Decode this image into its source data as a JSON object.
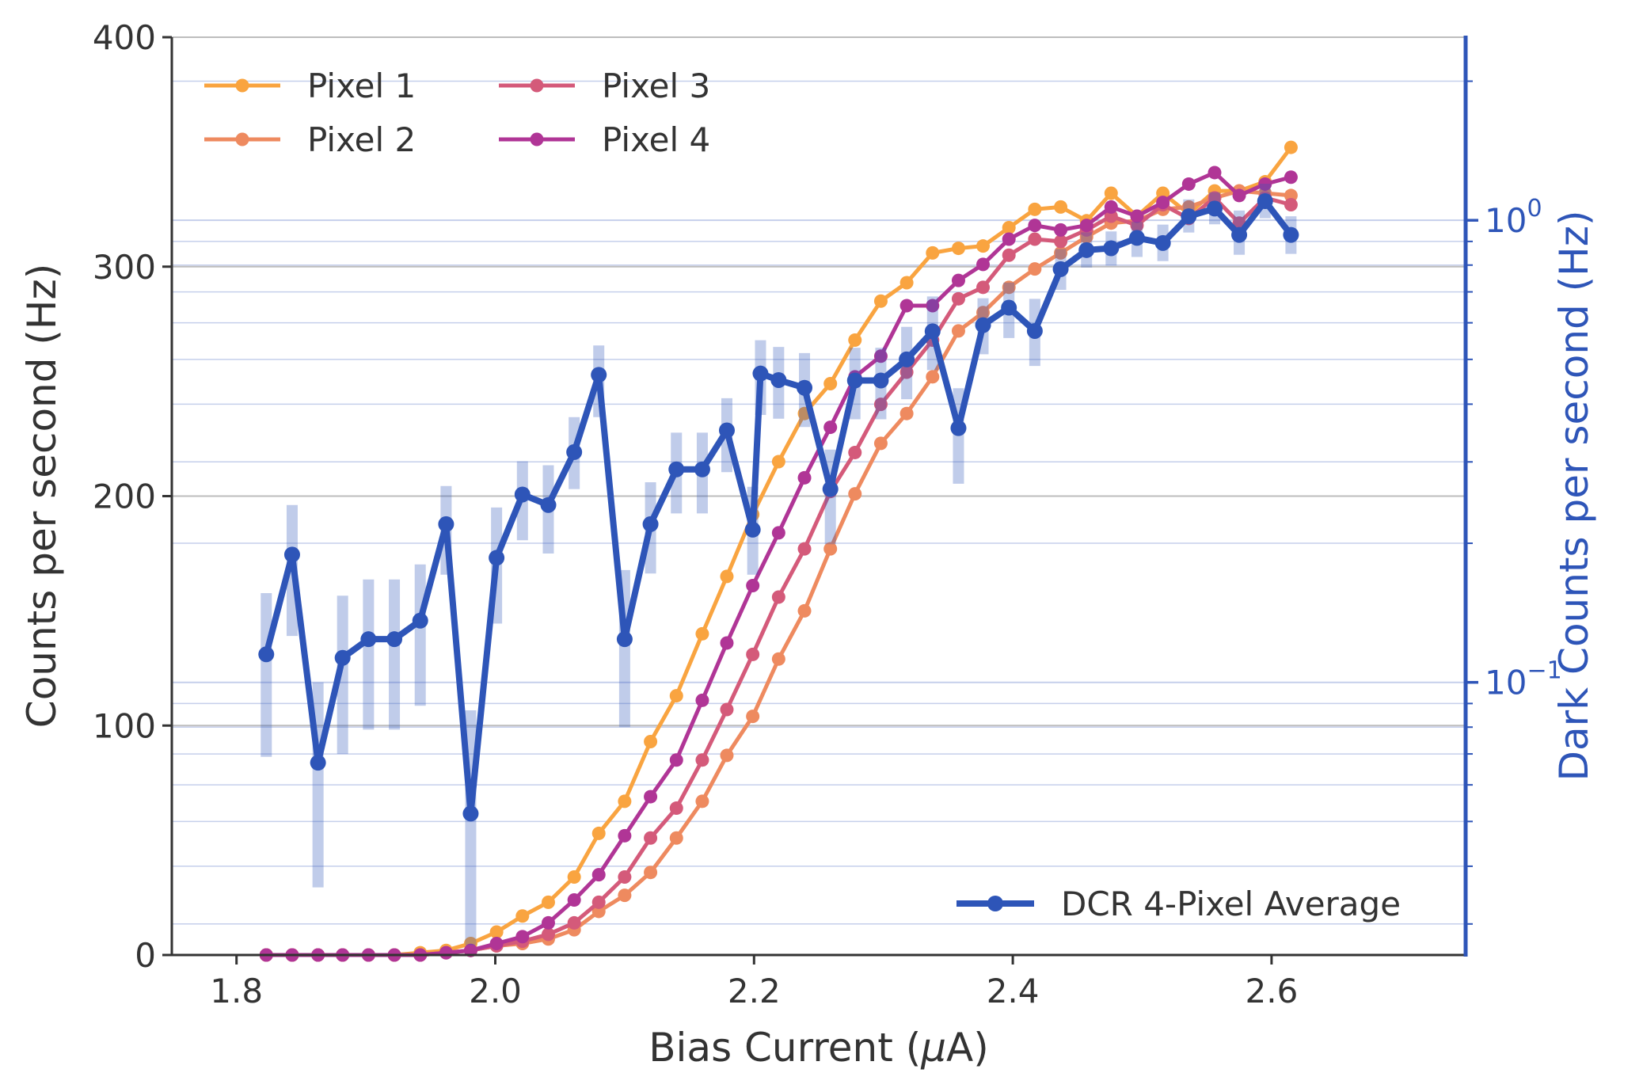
{
  "chart_data": {
    "type": "line",
    "xlabel_prefix": "Bias Current (",
    "xlabel_unit_symbol": "μ",
    "xlabel_suffix": "A)",
    "ylabel": "Counts per second (Hz)",
    "y2label": "Dark Counts per second (Hz)",
    "xlim": [
      1.75,
      2.75
    ],
    "ylim": [
      0,
      400
    ],
    "y2lim": [
      0.0257,
      2.49
    ],
    "y2scale": "log",
    "xticks": [
      1.8,
      2.0,
      2.2,
      2.4,
      2.6
    ],
    "xtick_labels": [
      "1.8",
      "2.0",
      "2.2",
      "2.4",
      "2.6"
    ],
    "yticks": [
      0,
      100,
      200,
      300,
      400
    ],
    "ytick_labels": [
      "0",
      "100",
      "200",
      "300",
      "400"
    ],
    "y2ticks": [
      {
        "value": 0.1,
        "base": "10",
        "exp": "−1"
      },
      {
        "value": 1.0,
        "base": "10",
        "exp": "0"
      }
    ],
    "grid": true,
    "legend_placement": "top-left",
    "legend2_placement": "bottom-right",
    "x": [
      1.823,
      1.843,
      1.863,
      1.882,
      1.902,
      1.922,
      1.942,
      1.962,
      1.981,
      2.001,
      2.021,
      2.041,
      2.061,
      2.08,
      2.1,
      2.12,
      2.14,
      2.16,
      2.179,
      2.199,
      2.219,
      2.239,
      2.259,
      2.278,
      2.298,
      2.318,
      2.338,
      2.358,
      2.377,
      2.397,
      2.417,
      2.437,
      2.457,
      2.476,
      2.496,
      2.516,
      2.536,
      2.556,
      2.575,
      2.595,
      2.615
    ],
    "series": [
      {
        "name": "Pixel 1",
        "color": "#f9a440",
        "values": [
          0,
          0,
          0,
          0,
          0,
          0,
          1,
          2,
          5,
          10,
          17,
          23,
          34,
          53,
          67,
          93,
          113,
          140,
          165,
          192,
          215,
          236,
          249,
          268,
          285,
          293,
          306,
          308,
          309,
          317,
          325,
          326,
          320,
          332,
          322,
          332,
          323,
          333,
          333,
          337,
          352
        ]
      },
      {
        "name": "Pixel 2",
        "color": "#ee8a5f",
        "values": [
          0,
          0,
          0,
          0,
          0,
          0,
          0,
          1,
          2,
          4,
          5,
          7,
          11,
          19,
          26,
          36,
          51,
          67,
          87,
          104,
          129,
          150,
          177,
          201,
          223,
          236,
          252,
          272,
          280,
          291,
          299,
          306,
          313,
          319,
          320,
          325,
          326,
          330,
          333,
          332,
          331
        ]
      },
      {
        "name": "Pixel 3",
        "color": "#d45a7a",
        "values": [
          0,
          0,
          0,
          0,
          0,
          0,
          0,
          1,
          2,
          4,
          6,
          9,
          14,
          23,
          34,
          51,
          64,
          85,
          107,
          131,
          156,
          177,
          202,
          219,
          240,
          254,
          268,
          286,
          291,
          305,
          312,
          311,
          316,
          322,
          318,
          327,
          321,
          330,
          319,
          330,
          327
        ]
      },
      {
        "name": "Pixel 4",
        "color": "#b03596",
        "values": [
          0,
          0,
          0,
          0,
          0,
          0,
          0,
          1,
          2,
          5,
          8,
          14,
          24,
          35,
          52,
          69,
          85,
          111,
          136,
          161,
          184,
          208,
          230,
          252,
          261,
          283,
          283,
          294,
          301,
          312,
          318,
          316,
          318,
          326,
          322,
          328,
          336,
          341,
          331,
          336,
          339
        ]
      }
    ],
    "y2_series": {
      "name": "DCR 4-Pixel Average",
      "color": "#2e55b8",
      "values": [
        0.115,
        0.189,
        0.067,
        0.113,
        0.124,
        0.124,
        0.136,
        0.22,
        0.052,
        0.186,
        0.255,
        0.242,
        0.315,
        0.463,
        0.124,
        0.22,
        0.289,
        0.289,
        0.351,
        0.214,
        0.466,
        0.451,
        0.434,
        0.262,
        0.45,
        0.45,
        0.5,
        0.575,
        0.355,
        0.593,
        0.647,
        0.576,
        0.784,
        0.862,
        0.87,
        0.916,
        0.893,
        1.02,
        1.06,
        0.93,
        1.1,
        0.93
      ],
      "x_override": [
        1.823,
        1.843,
        1.863,
        1.882,
        1.902,
        1.922,
        1.942,
        1.962,
        1.981,
        2.001,
        2.021,
        2.041,
        2.061,
        2.08,
        2.1,
        2.12,
        2.14,
        2.16,
        2.179,
        2.199,
        2.205,
        2.219,
        2.239,
        2.259,
        2.278,
        2.298,
        2.318,
        2.338,
        2.358,
        2.377,
        2.397,
        2.417,
        2.437,
        2.457,
        2.476,
        2.496,
        2.516,
        2.536,
        2.556,
        2.575,
        2.595,
        2.615
      ],
      "err_low": [
        0.069,
        0.126,
        0.036,
        0.07,
        0.079,
        0.079,
        0.089,
        0.171,
        0.027,
        0.134,
        0.203,
        0.19,
        0.262,
        0.375,
        0.08,
        0.172,
        0.232,
        0.232,
        0.285,
        0.171,
        0.379,
        0.372,
        0.357,
        0.199,
        0.371,
        0.371,
        0.41,
        0.474,
        0.269,
        0.513,
        0.556,
        0.484,
        0.707,
        0.79,
        0.798,
        0.833,
        0.816,
        0.941,
        0.98,
        0.842,
        1.01,
        0.846
      ],
      "err_high": [
        0.156,
        0.242,
        0.1,
        0.154,
        0.167,
        0.167,
        0.18,
        0.266,
        0.087,
        0.239,
        0.301,
        0.295,
        0.375,
        0.536,
        0.175,
        0.271,
        0.347,
        0.347,
        0.412,
        0.265,
        0.55,
        0.532,
        0.516,
        0.319,
        0.53,
        0.53,
        0.588,
        0.684,
        0.433,
        0.678,
        0.733,
        0.676,
        0.867,
        0.942,
        0.946,
        0.992,
        0.979,
        1.11,
        1.15,
        1.05,
        1.2,
        1.02
      ]
    }
  }
}
